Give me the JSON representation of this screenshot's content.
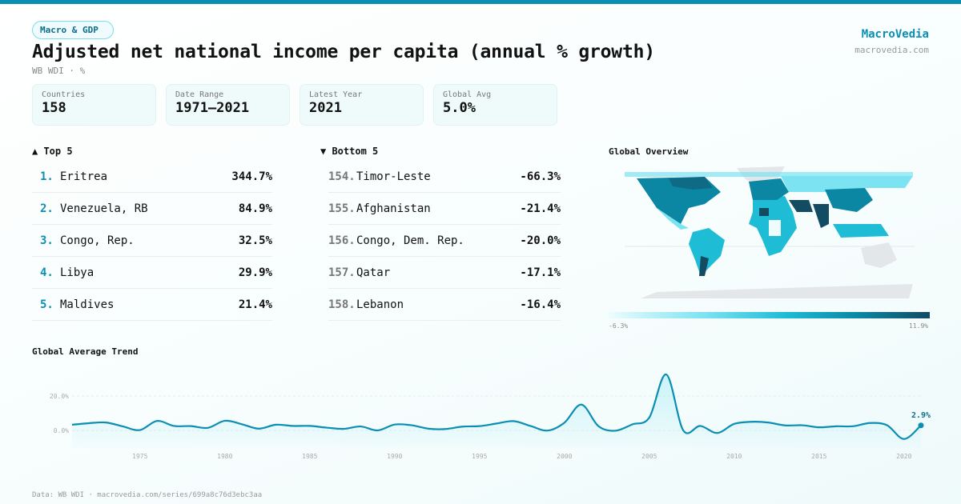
{
  "header": {
    "badge": "Macro & GDP",
    "title": "Adjusted net national income per capita (annual % growth)",
    "subtitle": "WB WDI · %",
    "brand": "MacroVedia",
    "brand_url": "macrovedia.com"
  },
  "stats": [
    {
      "label": "Countries",
      "value": "158"
    },
    {
      "label": "Date Range",
      "value": "1971–2021"
    },
    {
      "label": "Latest Year",
      "value": "2021"
    },
    {
      "label": "Global Avg",
      "value": "5.0%"
    }
  ],
  "top5": {
    "title": "▲ Top 5",
    "items": [
      {
        "rank": "1.",
        "name": "Eritrea",
        "value": "344.7%"
      },
      {
        "rank": "2.",
        "name": "Venezuela, RB",
        "value": "84.9%"
      },
      {
        "rank": "3.",
        "name": "Congo, Rep.",
        "value": "32.5%"
      },
      {
        "rank": "4.",
        "name": "Libya",
        "value": "29.9%"
      },
      {
        "rank": "5.",
        "name": "Maldives",
        "value": "21.4%"
      }
    ]
  },
  "bottom5": {
    "title": "▼ Bottom 5",
    "items": [
      {
        "rank": "154.",
        "name": "Timor-Leste",
        "value": "-66.3%"
      },
      {
        "rank": "155.",
        "name": "Afghanistan",
        "value": "-21.4%"
      },
      {
        "rank": "156.",
        "name": "Congo, Dem. Rep.",
        "value": "-20.0%"
      },
      {
        "rank": "157.",
        "name": "Qatar",
        "value": "-17.1%"
      },
      {
        "rank": "158.",
        "name": "Lebanon",
        "value": "-16.4%"
      }
    ]
  },
  "map": {
    "title": "Global Overview",
    "legend_min": "-6.3%",
    "legend_max": "11.9%",
    "colors": [
      "#eefcfe",
      "#7be3f1",
      "#1fbcd6",
      "#0b86a3",
      "#124b62"
    ],
    "no_data_color": "#e4e7ea"
  },
  "footer": "Data: WB WDI · macrovedia.com/series/699a8c76d3ebc3aa",
  "chart_data": {
    "type": "area",
    "title": "Global Average Trend",
    "xlabel": "",
    "ylabel": "",
    "x": [
      1971,
      1972,
      1973,
      1974,
      1975,
      1976,
      1977,
      1978,
      1979,
      1980,
      1981,
      1982,
      1983,
      1984,
      1985,
      1986,
      1987,
      1988,
      1989,
      1990,
      1991,
      1992,
      1993,
      1994,
      1995,
      1996,
      1997,
      1998,
      1999,
      2000,
      2001,
      2002,
      2003,
      2004,
      2005,
      2006,
      2007,
      2008,
      2009,
      2010,
      2011,
      2012,
      2013,
      2014,
      2015,
      2016,
      2017,
      2018,
      2019,
      2020,
      2021
    ],
    "values": [
      3.3,
      4.2,
      4.6,
      2.3,
      0.2,
      5.5,
      2.6,
      2.5,
      1.5,
      5.6,
      3.6,
      1.0,
      3.3,
      2.6,
      2.6,
      1.6,
      0.9,
      2.3,
      0.0,
      3.4,
      3.0,
      1.0,
      0.8,
      2.2,
      2.5,
      4.0,
      5.4,
      2.6,
      -0.1,
      4.5,
      15.0,
      2.5,
      -0.2,
      3.5,
      7.5,
      32.5,
      0.0,
      2.6,
      -1.5,
      3.8,
      5.0,
      4.6,
      2.9,
      3.0,
      1.8,
      2.4,
      2.4,
      4.3,
      3.0,
      -5.0,
      2.9
    ],
    "xticks": [
      "1975",
      "1980",
      "1985",
      "1990",
      "1995",
      "2000",
      "2005",
      "2010",
      "2015",
      "2020"
    ],
    "yticks": [
      {
        "v": 0,
        "label": "0.0%"
      },
      {
        "v": 20,
        "label": "20.0%"
      }
    ],
    "last_label": "2.9%",
    "color": "#0a8fb3",
    "grid": true
  }
}
